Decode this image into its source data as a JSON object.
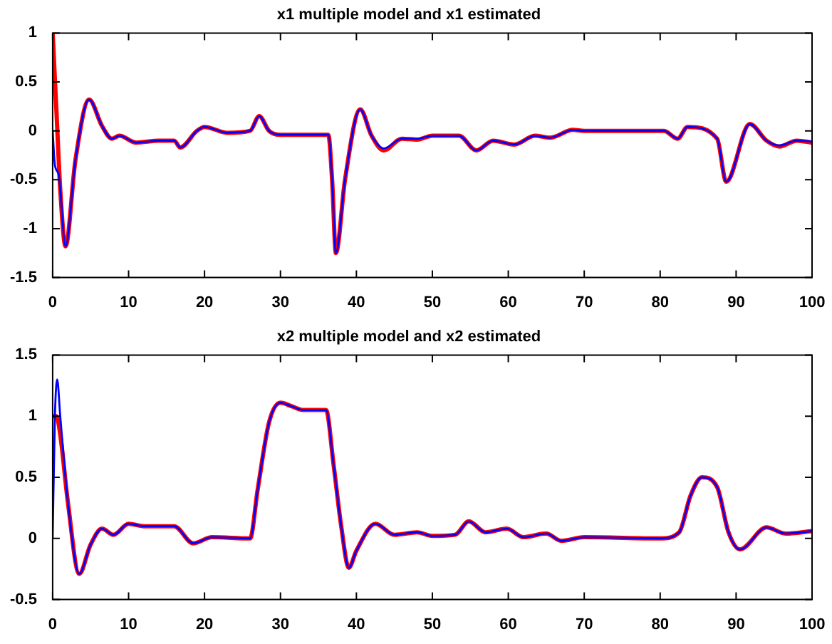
{
  "chart_data": [
    {
      "type": "line",
      "title": "x1 multiple model and x1 estimated",
      "xlim": [
        0,
        100
      ],
      "xticks": [
        0,
        10,
        20,
        30,
        40,
        50,
        60,
        70,
        80,
        90,
        100
      ],
      "ylim": [
        -1.5,
        1
      ],
      "yticks": [
        -1.5,
        -1,
        -0.5,
        0,
        0.5,
        1
      ],
      "grid": false,
      "legend": false,
      "marker": "none",
      "line_style": "solid",
      "series": [
        {
          "color": "#ff0000",
          "x": [
            0,
            0.5,
            1,
            1.7,
            3,
            4.8,
            6.5,
            7.8,
            8.8,
            11,
            14,
            16,
            16.8,
            19,
            20,
            23,
            26,
            27.2,
            28.5,
            30,
            36.3,
            36.8,
            37.3,
            38.5,
            40.5,
            42,
            43.6,
            46,
            48,
            50,
            53.5,
            55.8,
            58,
            60.8,
            63.5,
            65.5,
            68.5,
            70,
            80.5,
            82.3,
            83.6,
            87.5,
            88.7,
            91.8,
            94,
            95.7,
            98,
            100
          ],
          "values": [
            1,
            0.2,
            -0.6,
            -1.18,
            -0.3,
            0.32,
            0.05,
            -0.08,
            -0.05,
            -0.12,
            -0.1,
            -0.1,
            -0.17,
            0,
            0.04,
            -0.02,
            0,
            0.15,
            0,
            -0.04,
            -0.04,
            -0.5,
            -1.25,
            -0.5,
            0.22,
            -0.05,
            -0.2,
            -0.08,
            -0.09,
            -0.05,
            -0.05,
            -0.2,
            -0.1,
            -0.14,
            -0.05,
            -0.07,
            0.01,
            0,
            0,
            -0.08,
            0.04,
            -0.08,
            -0.52,
            0.07,
            -0.1,
            -0.16,
            -0.1,
            -0.12
          ]
        },
        {
          "color": "#0000ff",
          "x": [
            0,
            0.3,
            0.8,
            1.7,
            3,
            4.8,
            6.5,
            7.8,
            8.8,
            11,
            14,
            16,
            16.8,
            19,
            20,
            23,
            26,
            27.2,
            28.5,
            30,
            36.3,
            36.8,
            37.3,
            38.5,
            40.5,
            42,
            43.6,
            46,
            48,
            50,
            53.5,
            55.8,
            58,
            60.8,
            63.5,
            65.5,
            68.5,
            70,
            80.5,
            82.3,
            83.6,
            87.5,
            88.7,
            91.8,
            94,
            95.7,
            98,
            100
          ],
          "values": [
            0,
            -0.35,
            -0.45,
            -1.18,
            -0.3,
            0.32,
            0.05,
            -0.08,
            -0.05,
            -0.12,
            -0.1,
            -0.1,
            -0.17,
            0,
            0.04,
            -0.02,
            0,
            0.15,
            0,
            -0.04,
            -0.04,
            -0.5,
            -1.25,
            -0.5,
            0.22,
            -0.05,
            -0.18,
            -0.08,
            -0.08,
            -0.05,
            -0.05,
            -0.2,
            -0.1,
            -0.14,
            -0.05,
            -0.07,
            0.01,
            0,
            0,
            -0.08,
            0.04,
            -0.08,
            -0.52,
            0.07,
            -0.1,
            -0.15,
            -0.1,
            -0.11
          ]
        }
      ]
    },
    {
      "type": "line",
      "title": "x2 multiple model and x2 estimated",
      "xlim": [
        0,
        100
      ],
      "xticks": [
        0,
        10,
        20,
        30,
        40,
        50,
        60,
        70,
        80,
        90,
        100
      ],
      "ylim": [
        -0.5,
        1.5
      ],
      "yticks": [
        -0.5,
        0,
        0.5,
        1,
        1.5
      ],
      "grid": false,
      "legend": false,
      "marker": "none",
      "line_style": "solid",
      "series": [
        {
          "color": "#ff0000",
          "x": [
            0,
            0.5,
            1,
            2,
            3.5,
            5,
            6.5,
            8,
            10,
            12,
            16,
            18.5,
            21,
            26,
            27,
            28.5,
            30,
            31.5,
            33,
            36,
            37,
            38,
            39,
            40,
            42.5,
            45,
            48,
            50,
            53,
            54.8,
            57,
            59.8,
            62,
            65,
            67,
            70,
            80,
            82.5,
            84,
            85.5,
            87.5,
            89,
            90.5,
            94,
            96.5,
            100
          ],
          "values": [
            1,
            1,
            0.85,
            0.3,
            -0.29,
            -0.05,
            0.08,
            0.03,
            0.12,
            0.1,
            0.1,
            -0.04,
            0.01,
            0,
            0.4,
            0.95,
            1.11,
            1.08,
            1.05,
            1.05,
            0.6,
            0.1,
            -0.24,
            -0.1,
            0.12,
            0.03,
            0.05,
            0.02,
            0.03,
            0.14,
            0.05,
            0.08,
            0.01,
            0.04,
            -0.02,
            0.01,
            0,
            0.05,
            0.35,
            0.5,
            0.42,
            0.05,
            -0.09,
            0.09,
            0.04,
            0.06
          ]
        },
        {
          "color": "#0000ff",
          "x": [
            0,
            0.3,
            0.6,
            1,
            2,
            3.5,
            5,
            6.5,
            8,
            10,
            12,
            16,
            18.5,
            21,
            26,
            27,
            28.5,
            30,
            31.5,
            33,
            36,
            37,
            38,
            39,
            40,
            42.5,
            45,
            48,
            50,
            53,
            54.8,
            57,
            59.8,
            62,
            65,
            67,
            70,
            80,
            82.5,
            84,
            85.5,
            87.5,
            89,
            90.5,
            94,
            96.5,
            100
          ],
          "values": [
            0,
            1,
            1.3,
            1,
            0.3,
            -0.29,
            -0.05,
            0.08,
            0.03,
            0.12,
            0.1,
            0.1,
            -0.04,
            0.01,
            0,
            0.4,
            0.95,
            1.11,
            1.08,
            1.05,
            1.05,
            0.6,
            0.1,
            -0.24,
            -0.1,
            0.12,
            0.03,
            0.05,
            0.02,
            0.03,
            0.14,
            0.05,
            0.08,
            0.01,
            0.04,
            -0.02,
            0.01,
            0,
            0.05,
            0.35,
            0.5,
            0.42,
            0.05,
            -0.09,
            0.09,
            0.04,
            0.06
          ]
        }
      ]
    }
  ]
}
